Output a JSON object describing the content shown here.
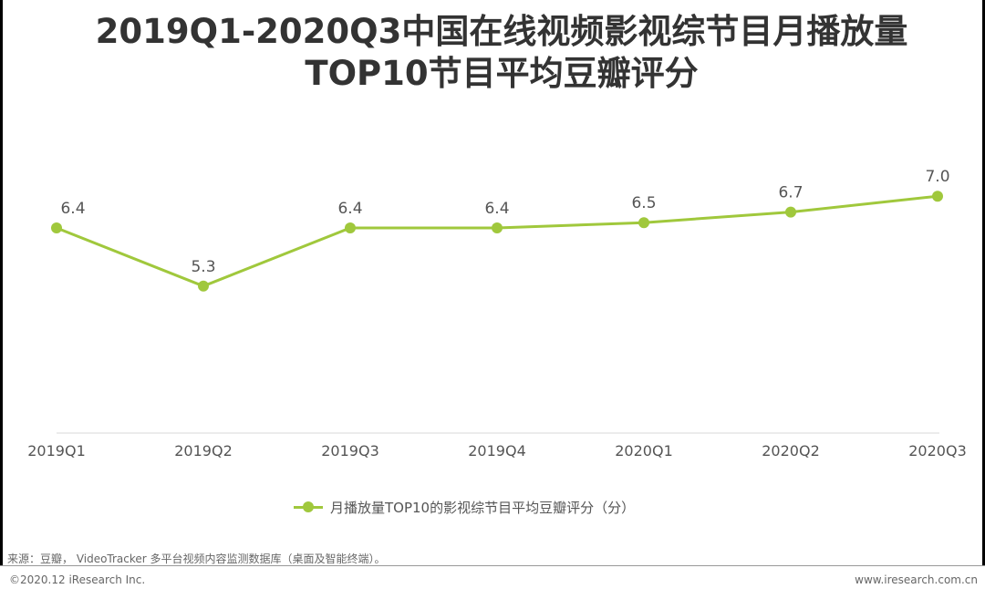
{
  "title_line1": "2019Q1-2020Q3中国在线视频影视综节目月播放量",
  "title_line2": "TOP10节目平均豆瓣评分",
  "chart_data": {
    "type": "line",
    "title": "2019Q1-2020Q3中国在线视频影视综节目月播放量TOP10节目平均豆瓣评分",
    "categories": [
      "2019Q1",
      "2019Q2",
      "2019Q3",
      "2019Q4",
      "2020Q1",
      "2020Q2",
      "2020Q3"
    ],
    "series": [
      {
        "name": "月播放量TOP10的影视综节目平均豆瓣评分（分）",
        "values": [
          6.4,
          5.3,
          6.4,
          6.4,
          6.5,
          6.7,
          7.0
        ],
        "labels": [
          "6.4",
          "5.3",
          "6.4",
          "6.4",
          "6.5",
          "6.7",
          "7.0"
        ],
        "color": "#A0C83C"
      }
    ],
    "xlabel": "",
    "ylabel": "",
    "ylim": [
      0,
      7.5
    ],
    "grid": false,
    "legend": "bottom"
  },
  "legend_label": "月播放量TOP10的影视综节目平均豆瓣评分（分）",
  "source": "来源：豆瓣， VideoTracker 多平台视频内容监测数据库（桌面及智能终端）。",
  "copyright": "©2020.12 iResearch Inc.",
  "website": "www.iresearch.com.cn"
}
